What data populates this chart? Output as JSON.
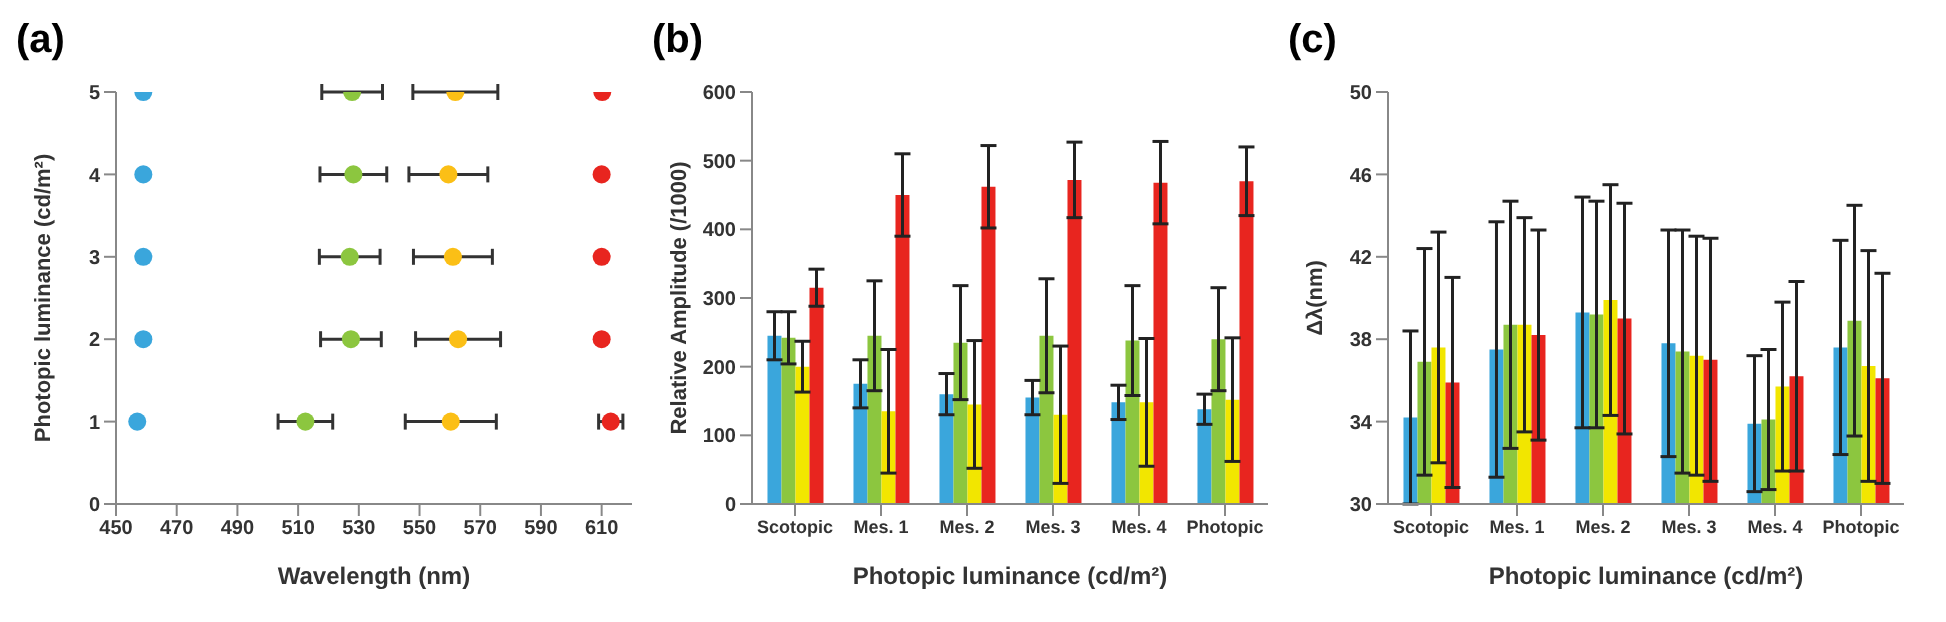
{
  "chart_data": [
    {
      "type": "scatter",
      "title": "(a)",
      "xlabel": "Wavelength (nm)",
      "ylabel": "Photopic luminance (cd/m²)",
      "xlim": [
        450,
        620
      ],
      "xticks": [
        450,
        470,
        490,
        510,
        530,
        550,
        570,
        590,
        610
      ],
      "ylim": [
        0,
        5
      ],
      "yticks": [
        0,
        1,
        2,
        3,
        4,
        5
      ],
      "marker": "circle",
      "series": [
        {
          "color": "#3aa6dc",
          "x": [
            457,
            459,
            459,
            459,
            459
          ],
          "values": [
            1,
            2,
            3,
            4,
            5
          ],
          "xerrors": [
            null,
            null,
            null,
            null,
            null
          ]
        },
        {
          "color": "#8cc63f",
          "x": [
            512.4,
            527.4,
            527,
            528.2,
            527.8
          ],
          "values": [
            1,
            2,
            3,
            4,
            5
          ],
          "xerrors": [
            9,
            10,
            10,
            11,
            10
          ]
        },
        {
          "color": "#fbbf16",
          "x": [
            560.3,
            562.7,
            561,
            559.5,
            561.8
          ],
          "values": [
            1,
            2,
            3,
            4,
            5
          ],
          "xerrors": [
            15,
            14,
            13,
            13,
            14
          ]
        },
        {
          "color": "#e8251f",
          "x": [
            613,
            610,
            610,
            610,
            610.2
          ],
          "values": [
            1,
            2,
            3,
            4,
            5
          ],
          "xerrors": [
            4,
            null,
            null,
            null,
            null
          ]
        }
      ]
    },
    {
      "type": "bar",
      "title": "(b)",
      "xlabel": "Photopic luminance (cd/m²)",
      "ylabel": "Relative Amplitude (/1000)",
      "categories": [
        "Scotopic",
        "Mes. 1",
        "Mes. 2",
        "Mes. 3",
        "Mes. 4",
        "Photopic"
      ],
      "ylim": [
        0,
        600
      ],
      "yticks": [
        0,
        100,
        200,
        300,
        400,
        500,
        600
      ],
      "series": [
        {
          "color": "#3aa6dc",
          "values": [
            245,
            175,
            160,
            155,
            148,
            138
          ],
          "errors": [
            35,
            35,
            30,
            25,
            25,
            22
          ]
        },
        {
          "color": "#8cc63f",
          "values": [
            242,
            245,
            235,
            245,
            238,
            240
          ],
          "errors": [
            38,
            80,
            83,
            83,
            80,
            75
          ]
        },
        {
          "color": "#f2e600",
          "values": [
            200,
            135,
            145,
            130,
            148,
            152
          ],
          "errors": [
            37,
            90,
            93,
            100,
            93,
            90
          ]
        },
        {
          "color": "#e8251f",
          "values": [
            315,
            450,
            462,
            472,
            468,
            470
          ],
          "errors": [
            27,
            60,
            60,
            55,
            60,
            50
          ]
        }
      ]
    },
    {
      "type": "bar",
      "title": "(c)",
      "xlabel": "Photopic luminance (cd/m²)",
      "ylabel": "Δλ(nm)",
      "categories": [
        "Scotopic",
        "Mes. 1",
        "Mes. 2",
        "Mes. 3",
        "Mes. 4",
        "Photopic"
      ],
      "ylim": [
        30,
        50
      ],
      "yticks": [
        30,
        34,
        38,
        42,
        46,
        50
      ],
      "series": [
        {
          "color": "#3aa6dc",
          "values": [
            34.2,
            37.5,
            39.3,
            37.8,
            33.9,
            37.6
          ],
          "errors": [
            4.2,
            6.2,
            5.6,
            5.5,
            3.3,
            5.2
          ]
        },
        {
          "color": "#8cc63f",
          "values": [
            36.9,
            38.7,
            39.2,
            37.4,
            34.1,
            38.9
          ],
          "errors": [
            5.5,
            6,
            5.5,
            5.9,
            3.4,
            5.6
          ]
        },
        {
          "color": "#f2e600",
          "values": [
            37.6,
            38.7,
            39.9,
            37.2,
            35.7,
            36.7
          ],
          "errors": [
            5.6,
            5.2,
            5.6,
            5.8,
            4.1,
            5.6
          ]
        },
        {
          "color": "#e8251f",
          "values": [
            35.9,
            38.2,
            39.0,
            37.0,
            36.2,
            36.1
          ],
          "errors": [
            5.1,
            5.1,
            5.6,
            5.9,
            4.6,
            5.1
          ]
        }
      ]
    }
  ]
}
